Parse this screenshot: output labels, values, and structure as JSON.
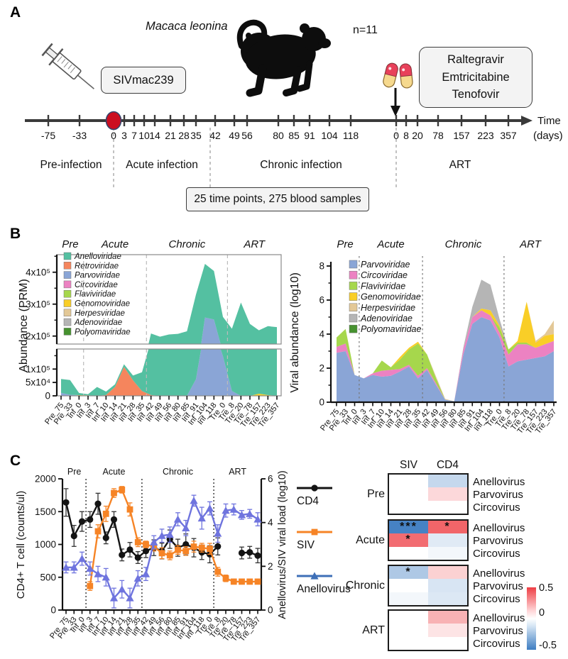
{
  "figure": {
    "panelA": {
      "label": "A",
      "species": "Macaca leonina",
      "n_label": "n=11",
      "inoculum": "SIVmac239",
      "art_drugs": [
        "Raltegravir",
        "Emtricitabine",
        "Tenofovir"
      ],
      "time_label": "Time",
      "time_unit": "(days)",
      "tick_labels": [
        "-75",
        "-33",
        "0",
        "3",
        "7",
        "10",
        "14",
        "21",
        "28",
        "35",
        "42",
        "49",
        "56",
        "80",
        "85",
        "91",
        "104",
        "118",
        "0",
        "8",
        "20",
        "78",
        "157",
        "223",
        "357"
      ],
      "phases": [
        "Pre-infection",
        "Acute infection",
        "Chronic infection",
        "ART"
      ],
      "sample_note": "25 time points, 275 blood samples"
    },
    "panelB": {
      "label": "B"
    },
    "panelC": {
      "label": "C"
    }
  },
  "chart_data": [
    {
      "id": "abundance-prm",
      "type": "area",
      "ylabel": "Abundance (PRM)",
      "phase_labels": [
        "Pre",
        "Acute",
        "Chronic",
        "ART"
      ],
      "phase_boundaries_after_index": [
        2,
        9,
        18
      ],
      "categories": [
        "Pre_75",
        "Pre_33",
        "Inf_0",
        "Inf_3",
        "Inf_7",
        "Inf_10",
        "Inf_14",
        "Inf_21",
        "Inf_28",
        "Inf_35",
        "Inf_42",
        "Inf_49",
        "Inf_56",
        "Inf_80",
        "Inf_85",
        "Inf_91",
        "Inf_104",
        "Inf_118",
        "Tre_0",
        "Tre_8",
        "Tre_20",
        "Tre_78",
        "Tre_157",
        "Tre_223",
        "Tre_357"
      ],
      "axis_break": {
        "lower_range": [
          0,
          175000
        ],
        "upper_range": [
          175000,
          455000
        ]
      },
      "y_ticks_upper": [
        {
          "v": 200000,
          "label": "2x10⁵"
        },
        {
          "v": 300000,
          "label": "3x10⁵"
        },
        {
          "v": 400000,
          "label": "4x10⁵"
        }
      ],
      "y_minor_upper": [
        250000,
        350000,
        450000
      ],
      "y_ticks_lower": [
        {
          "v": 0,
          "label": "0"
        },
        {
          "v": 50000,
          "label": "5x10⁴"
        },
        {
          "v": 100000,
          "label": "1x10⁵"
        }
      ],
      "y_minor_lower": [
        150000
      ],
      "stack_order": "reverse",
      "series": [
        {
          "name": "Anelloviridae",
          "color": "#54c0a1",
          "values": [
            52000,
            55000,
            8000,
            4000,
            33000,
            13000,
            10000,
            10000,
            18000,
            70000,
            205000,
            198000,
            205000,
            207000,
            215000,
            268000,
            168000,
            152000,
            112000,
            205000,
            305000,
            238000,
            210000,
            228000,
            228000
          ]
        },
        {
          "name": "Retroviridae",
          "color": "#f5855d",
          "values": [
            0,
            0,
            0,
            0,
            0,
            3000,
            33000,
            108000,
            58000,
            18000,
            3000,
            0,
            0,
            0,
            0,
            0,
            0,
            0,
            0,
            0,
            0,
            0,
            0,
            0,
            0
          ]
        },
        {
          "name": "Parvoviridae",
          "color": "#8aa5d6",
          "values": [
            11000,
            4000,
            0,
            0,
            0,
            0,
            0,
            0,
            0,
            0,
            0,
            0,
            0,
            0,
            0,
            62000,
            258000,
            252000,
            148000,
            18000,
            0,
            0,
            0,
            0,
            0
          ]
        },
        {
          "name": "Circoviridae",
          "color": "#ec82c2",
          "values": [
            0,
            0,
            0,
            0,
            0,
            0,
            0,
            0,
            0,
            0,
            0,
            0,
            0,
            0,
            0,
            0,
            0,
            0,
            0,
            0,
            0,
            0,
            0,
            0,
            0
          ]
        },
        {
          "name": "Flaviviridae",
          "color": "#a6d74c",
          "values": [
            0,
            0,
            0,
            0,
            0,
            0,
            0,
            0,
            0,
            0,
            0,
            0,
            0,
            0,
            0,
            0,
            0,
            0,
            0,
            0,
            0,
            0,
            0,
            0,
            0
          ]
        },
        {
          "name": "Genomoviridae",
          "color": "#f9ce27",
          "values": [
            0,
            0,
            2500,
            2000,
            0,
            0,
            0,
            0,
            0,
            0,
            0,
            0,
            0,
            0,
            0,
            0,
            0,
            0,
            0,
            0,
            0,
            0,
            8000,
            3000,
            0
          ]
        },
        {
          "name": "Herpesviridae",
          "color": "#e3c897",
          "values": [
            0,
            0,
            0,
            0,
            0,
            0,
            0,
            0,
            0,
            0,
            0,
            0,
            0,
            0,
            0,
            0,
            0,
            0,
            0,
            0,
            0,
            0,
            0,
            0,
            0
          ]
        },
        {
          "name": "Adenoviridae",
          "color": "#b5b5b5",
          "values": [
            0,
            0,
            0,
            0,
            0,
            0,
            0,
            0,
            0,
            0,
            0,
            0,
            0,
            0,
            0,
            0,
            0,
            0,
            0,
            0,
            0,
            0,
            0,
            0,
            0
          ]
        },
        {
          "name": "Polyomaviridae",
          "color": "#46922f",
          "values": [
            0,
            0,
            0,
            0,
            0,
            0,
            0,
            0,
            0,
            0,
            0,
            0,
            0,
            0,
            0,
            0,
            0,
            0,
            0,
            0,
            0,
            0,
            0,
            0,
            0
          ]
        }
      ]
    },
    {
      "id": "viral-abundance-log10",
      "type": "area",
      "ylabel": "Viral abundance (log10)",
      "phase_labels": [
        "Pre",
        "Acute",
        "Chronic",
        "ART"
      ],
      "phase_boundaries_after_index": [
        2,
        9,
        18
      ],
      "categories": [
        "Pre_75",
        "Pre_33",
        "Inf_0",
        "Inf_3",
        "Inf_7",
        "Inf_10",
        "Inf_14",
        "Inf_21",
        "Inf_28",
        "Inf_35",
        "Inf_42",
        "Inf_49",
        "Inf_56",
        "Inf_80",
        "Inf_85",
        "Inf_91",
        "Inf_104",
        "Inf_118",
        "Tre_0",
        "Tre_8",
        "Tre_20",
        "Tre_78",
        "Tre_157",
        "Tre_223",
        "Tre_357"
      ],
      "ylim": [
        0,
        8
      ],
      "y_ticks": [
        0,
        2,
        4,
        6,
        8
      ],
      "y_minor": [
        1,
        3,
        5,
        7
      ],
      "stack_order": "normal",
      "series": [
        {
          "name": "Parvoviridae",
          "color": "#8aa5d6",
          "values": [
            2.9,
            3.0,
            1.6,
            1.4,
            1.6,
            1.5,
            1.55,
            1.8,
            2.1,
            1.4,
            1.9,
            1.0,
            0.15,
            0.05,
            2.8,
            4.6,
            5.0,
            4.8,
            3.8,
            2.1,
            2.4,
            2.5,
            2.6,
            2.7,
            3.0
          ]
        },
        {
          "name": "Circoviridae",
          "color": "#ec82c2",
          "values": [
            0.35,
            0.45,
            0,
            0,
            0.1,
            0.35,
            0.35,
            0.15,
            0.1,
            0.15,
            0.1,
            0.1,
            0,
            0,
            0.3,
            0.4,
            0.4,
            0.3,
            0.3,
            0.7,
            1.0,
            0.9,
            0.6,
            0.7,
            0.6
          ]
        },
        {
          "name": "Flaviviridae",
          "color": "#a6d74c",
          "values": [
            0.55,
            0.85,
            0,
            0,
            0,
            0.6,
            0.15,
            0.55,
            0.9,
            1.9,
            0.8,
            0.3,
            0,
            0,
            0,
            0,
            0,
            0,
            0.3,
            0.3,
            0.1,
            0.1,
            0,
            0,
            0
          ]
        },
        {
          "name": "Genomoviridae",
          "color": "#f9ce27",
          "values": [
            0,
            0,
            0,
            0,
            0,
            0,
            0,
            0.15,
            0.1,
            0.1,
            0,
            0,
            0,
            0,
            0,
            0,
            0.1,
            0.3,
            0.1,
            0,
            0.1,
            2.4,
            0.3,
            0.5,
            0.4
          ]
        },
        {
          "name": "Herpesviridae",
          "color": "#e3c897",
          "values": [
            0,
            0,
            0,
            0,
            0,
            0,
            0,
            0,
            0,
            0,
            0,
            0.1,
            0.05,
            0,
            0,
            0,
            0,
            0,
            0,
            0,
            0,
            0,
            0.1,
            0.1,
            0.8
          ]
        },
        {
          "name": "Adenoviridae",
          "color": "#b5b5b5",
          "values": [
            0,
            0,
            0,
            0,
            0,
            0,
            0,
            0,
            0,
            0,
            0,
            0,
            0,
            0,
            0.1,
            0.6,
            1.7,
            1.5,
            0.4,
            0,
            0,
            0,
            0,
            0,
            0
          ]
        },
        {
          "name": "Polyomaviridae",
          "color": "#46922f",
          "values": [
            0,
            0,
            0,
            0,
            0,
            0,
            0,
            0,
            0,
            0,
            0,
            0,
            0,
            0,
            0,
            0,
            0,
            0,
            0,
            0,
            0,
            0,
            0,
            0,
            0
          ]
        }
      ]
    },
    {
      "id": "cd4-siv-anellovirus",
      "type": "line",
      "ylabel_left": "CD4+ T cell (counts/ul)",
      "ylabel_right": "Anellovirus/SIV viral load (log10)",
      "ylim_left": [
        0,
        2000
      ],
      "y_ticks_left": [
        0,
        500,
        1000,
        1500,
        2000
      ],
      "ylim_right": [
        0,
        6
      ],
      "y_ticks_right": [
        0,
        2,
        4,
        6
      ],
      "phase_labels": [
        "Pre",
        "Acute",
        "Chronic",
        "ART"
      ],
      "phase_boundaries_after_index": [
        2,
        9,
        18
      ],
      "categories": [
        "Pre_75",
        "Pre_33",
        "Inf_0",
        "Inf_3",
        "Inf_7",
        "Inf_10",
        "Inf_14",
        "Inf_21",
        "Inf_28",
        "Inf_35",
        "Inf_42",
        "Inf_49",
        "Inf_56",
        "Inf_80",
        "Inf_85",
        "Inf_91",
        "Inf_104",
        "Inf_118",
        "Tre_0",
        "Tre_8",
        "Tre_20",
        "Tre_78",
        "Tre_157",
        "Tre_223",
        "Tre_357"
      ],
      "series": [
        {
          "name": "CD4",
          "axis": "left",
          "marker": "circle",
          "color": "#141414",
          "legend_color": "#141414",
          "values": [
            1640,
            1130,
            1350,
            1380,
            1620,
            1100,
            1380,
            840,
            920,
            800,
            900,
            950,
            900,
            1080,
            950,
            1000,
            950,
            880,
            850,
            970,
            null,
            null,
            870,
            880,
            830
          ],
          "errors": [
            210,
            160,
            150,
            120,
            160,
            90,
            120,
            90,
            110,
            90,
            100,
            120,
            120,
            140,
            130,
            160,
            140,
            110,
            130,
            130,
            null,
            null,
            90,
            90,
            110
          ]
        },
        {
          "name": "SIV",
          "axis": "right",
          "marker": "square",
          "color": "#f68426",
          "legend_color": "#f68426",
          "values": [
            null,
            null,
            null,
            1.1,
            3.6,
            4.4,
            5.35,
            5.5,
            4.6,
            3.1,
            3.0,
            2.9,
            2.6,
            2.5,
            2.75,
            2.7,
            2.9,
            2.85,
            2.8,
            1.75,
            1.45,
            1.3,
            1.3,
            1.3,
            1.3
          ],
          "errors": [
            null,
            null,
            null,
            0.2,
            0.3,
            0.35,
            0.2,
            0.15,
            0.3,
            0.2,
            0.15,
            0.2,
            0.25,
            0.2,
            0.2,
            0.2,
            0.25,
            0.2,
            0.25,
            0.2,
            0.15,
            0.05,
            0.05,
            0.05,
            0.05
          ]
        },
        {
          "name": "Anellovirus",
          "axis": "right",
          "marker": "triangle",
          "color": "#6f74de",
          "legend_color": "#3e6fb7",
          "values": [
            1.95,
            1.95,
            2.35,
            1.9,
            1.65,
            1.5,
            0.55,
            0.95,
            0.55,
            1.45,
            1.65,
            3.1,
            3.4,
            3.45,
            4.15,
            3.75,
            5.0,
            4.2,
            4.65,
            3.5,
            4.55,
            4.6,
            4.35,
            4.4,
            4.15
          ],
          "errors": [
            0.25,
            0.25,
            0.3,
            0.3,
            0.35,
            0.4,
            0.45,
            0.4,
            0.45,
            0.35,
            0.3,
            0.3,
            0.3,
            0.35,
            0.3,
            0.35,
            0.25,
            0.5,
            0.3,
            0.4,
            0.3,
            0.25,
            0.2,
            0.2,
            0.3
          ]
        }
      ]
    },
    {
      "id": "correlation-heatmap",
      "type": "heatmap",
      "columns": [
        "SIV",
        "CD4"
      ],
      "row_labels": [
        "Anellovirus",
        "Parvovirus",
        "Circovirus"
      ],
      "scale": {
        "min": -0.5,
        "max": 0.5,
        "tick_labels": [
          "0.5",
          "0",
          "-0.5"
        ],
        "color_max": "#ee3e44",
        "color_min": "#3e7dc2"
      },
      "blocks": [
        {
          "phase": "Pre",
          "values": {
            "SIV": [
              0,
              0,
              0
            ],
            "CD4": [
              -0.15,
              0.1,
              0
            ]
          },
          "sig": {
            "SIV": [
              "",
              "",
              ""
            ],
            "CD4": [
              "",
              "",
              ""
            ]
          }
        },
        {
          "phase": "Acute",
          "values": {
            "SIV": [
              -0.48,
              0.38,
              0
            ],
            "CD4": [
              0.4,
              -0.08,
              -0.03
            ]
          },
          "sig": {
            "SIV": [
              "***",
              "*",
              ""
            ],
            "CD4": [
              "*",
              "",
              ""
            ]
          }
        },
        {
          "phase": "Chronic",
          "values": {
            "SIV": [
              -0.21,
              0,
              -0.03
            ],
            "CD4": [
              0.12,
              -0.1,
              -0.09
            ]
          },
          "sig": {
            "SIV": [
              "*",
              "",
              ""
            ],
            "CD4": [
              "",
              "",
              ""
            ]
          }
        },
        {
          "phase": "ART",
          "values": {
            "SIV": [
              0,
              0,
              0
            ],
            "CD4": [
              0.2,
              0.07,
              0
            ]
          },
          "sig": {
            "SIV": [
              "",
              "",
              ""
            ],
            "CD4": [
              "",
              "",
              ""
            ]
          }
        }
      ]
    }
  ]
}
